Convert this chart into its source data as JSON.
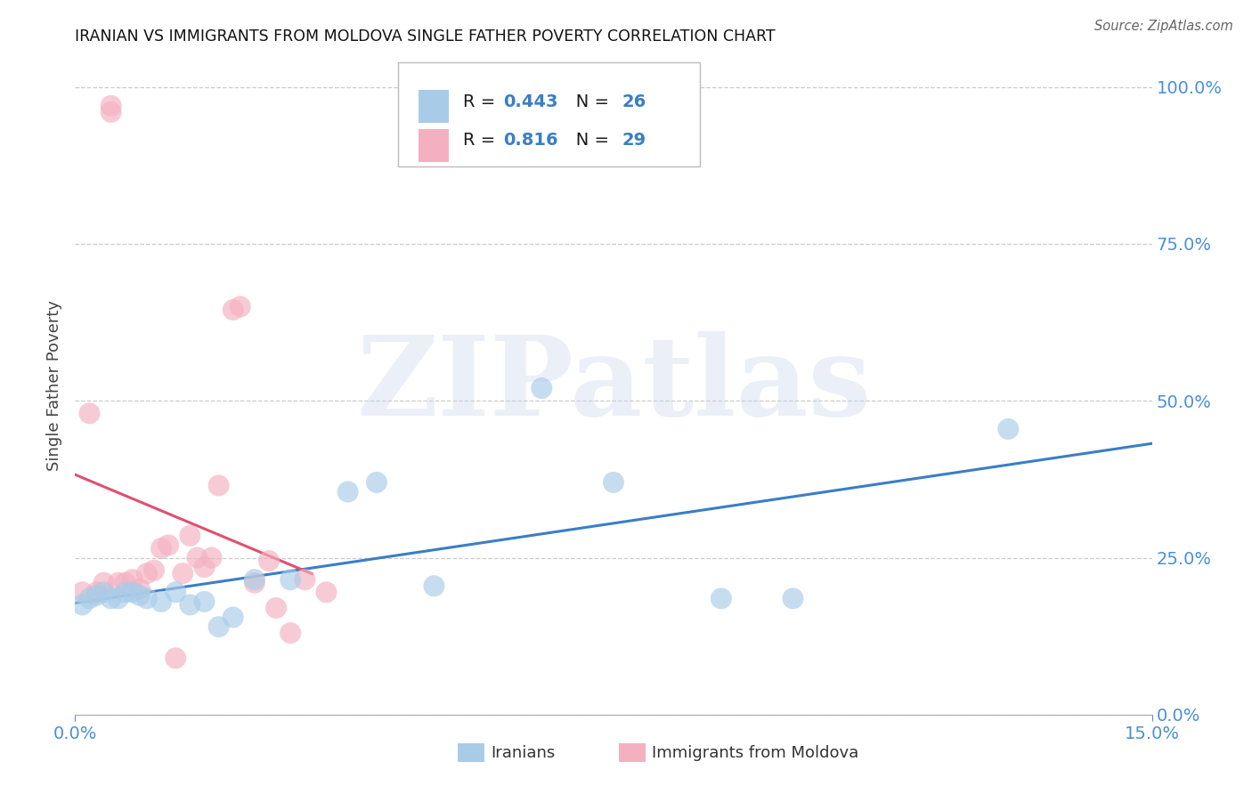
{
  "title": "IRANIAN VS IMMIGRANTS FROM MOLDOVA SINGLE FATHER POVERTY CORRELATION CHART",
  "source": "Source: ZipAtlas.com",
  "ylabel_label": "Single Father Poverty",
  "xlim": [
    0,
    0.15
  ],
  "ylim": [
    0,
    1.05
  ],
  "ytick_vals": [
    0.0,
    0.25,
    0.5,
    0.75,
    1.0
  ],
  "xtick_vals": [
    0.0,
    0.15
  ],
  "grid_color": "#cccccc",
  "background_color": "#ffffff",
  "watermark_text": "ZIPatlas",
  "R1": 0.443,
  "N1": 26,
  "R2": 0.816,
  "N2": 29,
  "legend_label1": "Iranians",
  "legend_label2": "Immigrants from Moldova",
  "color_blue": "#a8cce8",
  "color_pink": "#f4b0c0",
  "line_color_blue": "#3a7ec6",
  "line_color_pink": "#e05070",
  "tick_color": "#4a90d9",
  "iranians_x": [
    0.001,
    0.002,
    0.003,
    0.004,
    0.005,
    0.006,
    0.007,
    0.008,
    0.009,
    0.01,
    0.012,
    0.014,
    0.016,
    0.018,
    0.02,
    0.022,
    0.025,
    0.03,
    0.038,
    0.042,
    0.05,
    0.065,
    0.075,
    0.09,
    0.1,
    0.13
  ],
  "iranians_y": [
    0.175,
    0.185,
    0.19,
    0.195,
    0.185,
    0.185,
    0.195,
    0.195,
    0.19,
    0.185,
    0.18,
    0.195,
    0.175,
    0.18,
    0.14,
    0.155,
    0.215,
    0.215,
    0.355,
    0.37,
    0.205,
    0.52,
    0.37,
    0.185,
    0.185,
    0.455
  ],
  "moldova_x": [
    0.001,
    0.002,
    0.003,
    0.004,
    0.005,
    0.005,
    0.006,
    0.007,
    0.008,
    0.009,
    0.01,
    0.011,
    0.012,
    0.013,
    0.014,
    0.015,
    0.016,
    0.017,
    0.018,
    0.019,
    0.02,
    0.022,
    0.023,
    0.025,
    0.027,
    0.028,
    0.03,
    0.032,
    0.035
  ],
  "moldova_y": [
    0.195,
    0.48,
    0.195,
    0.21,
    0.96,
    0.97,
    0.21,
    0.21,
    0.215,
    0.2,
    0.225,
    0.23,
    0.265,
    0.27,
    0.09,
    0.225,
    0.285,
    0.25,
    0.235,
    0.25,
    0.365,
    0.645,
    0.65,
    0.21,
    0.245,
    0.17,
    0.13,
    0.215,
    0.195
  ]
}
